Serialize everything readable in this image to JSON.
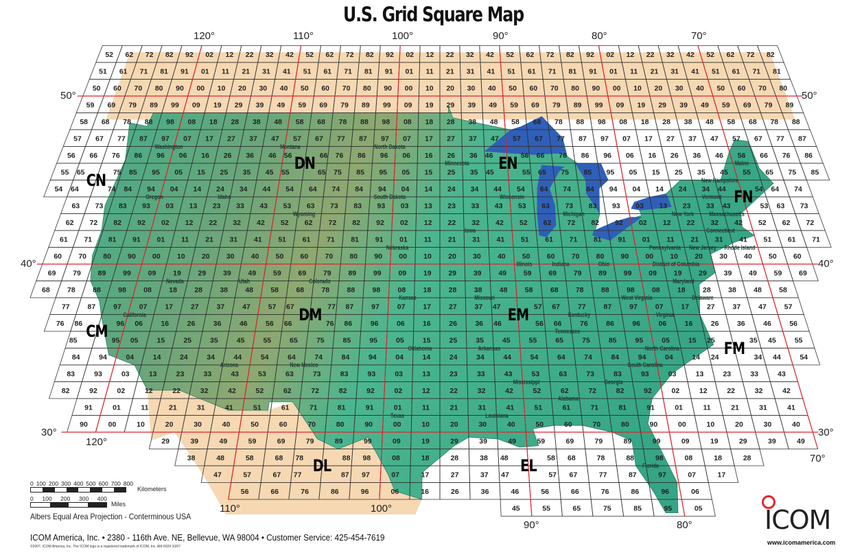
{
  "title": "U.S. Grid Square Map",
  "colors": {
    "land": "#3dae8c",
    "land_dark": "#2e8f73",
    "foreign": "#f6d8b3",
    "water": "#2f5fb8",
    "grid_line": "#333333",
    "graticule": "#e0232e",
    "logo_ring": "#e8242c"
  },
  "projection": {
    "type": "albers-conic",
    "central_meridian": -96
  },
  "grid": {
    "square_width_deg": 2,
    "square_height_deg": 1,
    "rows": [
      {
        "lat": 52,
        "lon_from": -130,
        "lon_to": -62
      },
      {
        "lat": 51,
        "lon_from": -130,
        "lon_to": -62
      },
      {
        "lat": 50,
        "lon_from": -130,
        "lon_to": -62
      },
      {
        "lat": 49,
        "lon_from": -130,
        "lon_to": -62
      },
      {
        "lat": 48,
        "lon_from": -130,
        "lon_to": -62
      },
      {
        "lat": 47,
        "lon_from": -130,
        "lon_to": -62
      },
      {
        "lat": 46,
        "lon_from": -130,
        "lon_to": -62
      },
      {
        "lat": 45,
        "lon_from": -130,
        "lon_to": -62
      },
      {
        "lat": 44,
        "lon_from": -130,
        "lon_to": -64
      },
      {
        "lat": 43,
        "lon_from": -128,
        "lon_to": -64
      },
      {
        "lat": 42,
        "lon_from": -128,
        "lon_to": -64
      },
      {
        "lat": 41,
        "lon_from": -128,
        "lon_to": -64
      },
      {
        "lat": 40,
        "lon_from": -128,
        "lon_to": -66
      },
      {
        "lat": 39,
        "lon_from": -128,
        "lon_to": -66
      },
      {
        "lat": 38,
        "lon_from": -128,
        "lon_to": -68
      },
      {
        "lat": 37,
        "lon_from": -126,
        "lon_to": -68
      },
      {
        "lat": 36,
        "lon_from": -126,
        "lon_to": -68
      },
      {
        "lat": 35,
        "lon_from": -124,
        "lon_to": -68
      },
      {
        "lat": 34,
        "lon_from": -124,
        "lon_to": -68
      },
      {
        "lat": 33,
        "lon_from": -124,
        "lon_to": -70
      },
      {
        "lat": 32,
        "lon_from": -124,
        "lon_to": -70
      },
      {
        "lat": 31,
        "lon_from": -122,
        "lon_to": -70
      },
      {
        "lat": 30,
        "lon_from": -122,
        "lon_to": -70
      },
      {
        "lat": 29,
        "lon_from": -116,
        "lon_to": -70
      },
      {
        "lat": 28,
        "lon_from": -114,
        "lon_to": -74
      },
      {
        "lat": 27,
        "lon_from": -112,
        "lon_to": -76
      },
      {
        "lat": 26,
        "lon_from": -110,
        "lon_to": -78
      },
      {
        "lat": 25,
        "lon_from": -92,
        "lon_to": -78
      }
    ]
  },
  "fields": [
    "CN",
    "DN",
    "EN",
    "FN",
    "CM",
    "DM",
    "EM",
    "FM",
    "DL",
    "EL"
  ],
  "degree_labels": {
    "top": [
      "120°",
      "110°",
      "100°",
      "90°",
      "80°",
      "70°"
    ],
    "bottom": [
      "120°",
      "110°",
      "100°",
      "90°",
      "80°",
      "70°"
    ],
    "left": [
      "50°",
      "40°",
      "30°"
    ],
    "right": [
      "50°",
      "40°",
      "30°"
    ]
  },
  "states": [
    "Washington",
    "Oregon",
    "California",
    "Nevada",
    "Idaho",
    "Montana",
    "Wyoming",
    "Utah",
    "Arizona",
    "Colorado",
    "New Mexico",
    "North Dakota",
    "South Dakota",
    "Nebraska",
    "Kansas",
    "Oklahoma",
    "Texas",
    "Minnesota",
    "Iowa",
    "Missouri",
    "Arkansas",
    "Louisiana",
    "Wisconsin",
    "Illinois",
    "Michigan",
    "Indiana",
    "Ohio",
    "Kentucky",
    "Tennessee",
    "Mississippi",
    "Alabama",
    "Georgia",
    "Florida",
    "South Carolina",
    "North Carolina",
    "Virginia",
    "West Virginia",
    "Pennsylvania",
    "New York",
    "Maryland",
    "Delaware",
    "New Jersey",
    "District of Columbia",
    "Connecticut",
    "Rhode Island",
    "Massachusetts",
    "New Hampshire",
    "Vermont",
    "Maine"
  ],
  "legend": {
    "km_ticks": [
      "0",
      "100",
      "200",
      "300",
      "400",
      "500",
      "600",
      "700",
      "800"
    ],
    "km_unit": "Kilometers",
    "mi_ticks": [
      "0",
      "100",
      "200",
      "300",
      "400"
    ],
    "mi_unit": "Miles",
    "projection": "Albers Equal Area Projection - Conterminous USA"
  },
  "footer": {
    "address": "ICOM America, Inc.  •  2380 - 116th Ave. NE, Bellevue, WA  98004  • Customer Service: 425-454-7619",
    "fine_print": "©2007, ICOM America, Inc. The ICOM logo is a registered trademark of ICOM, Inc.     AM-5024  10/07"
  },
  "logo": {
    "text": "ICOM",
    "url": "www.icomamerica.com"
  }
}
